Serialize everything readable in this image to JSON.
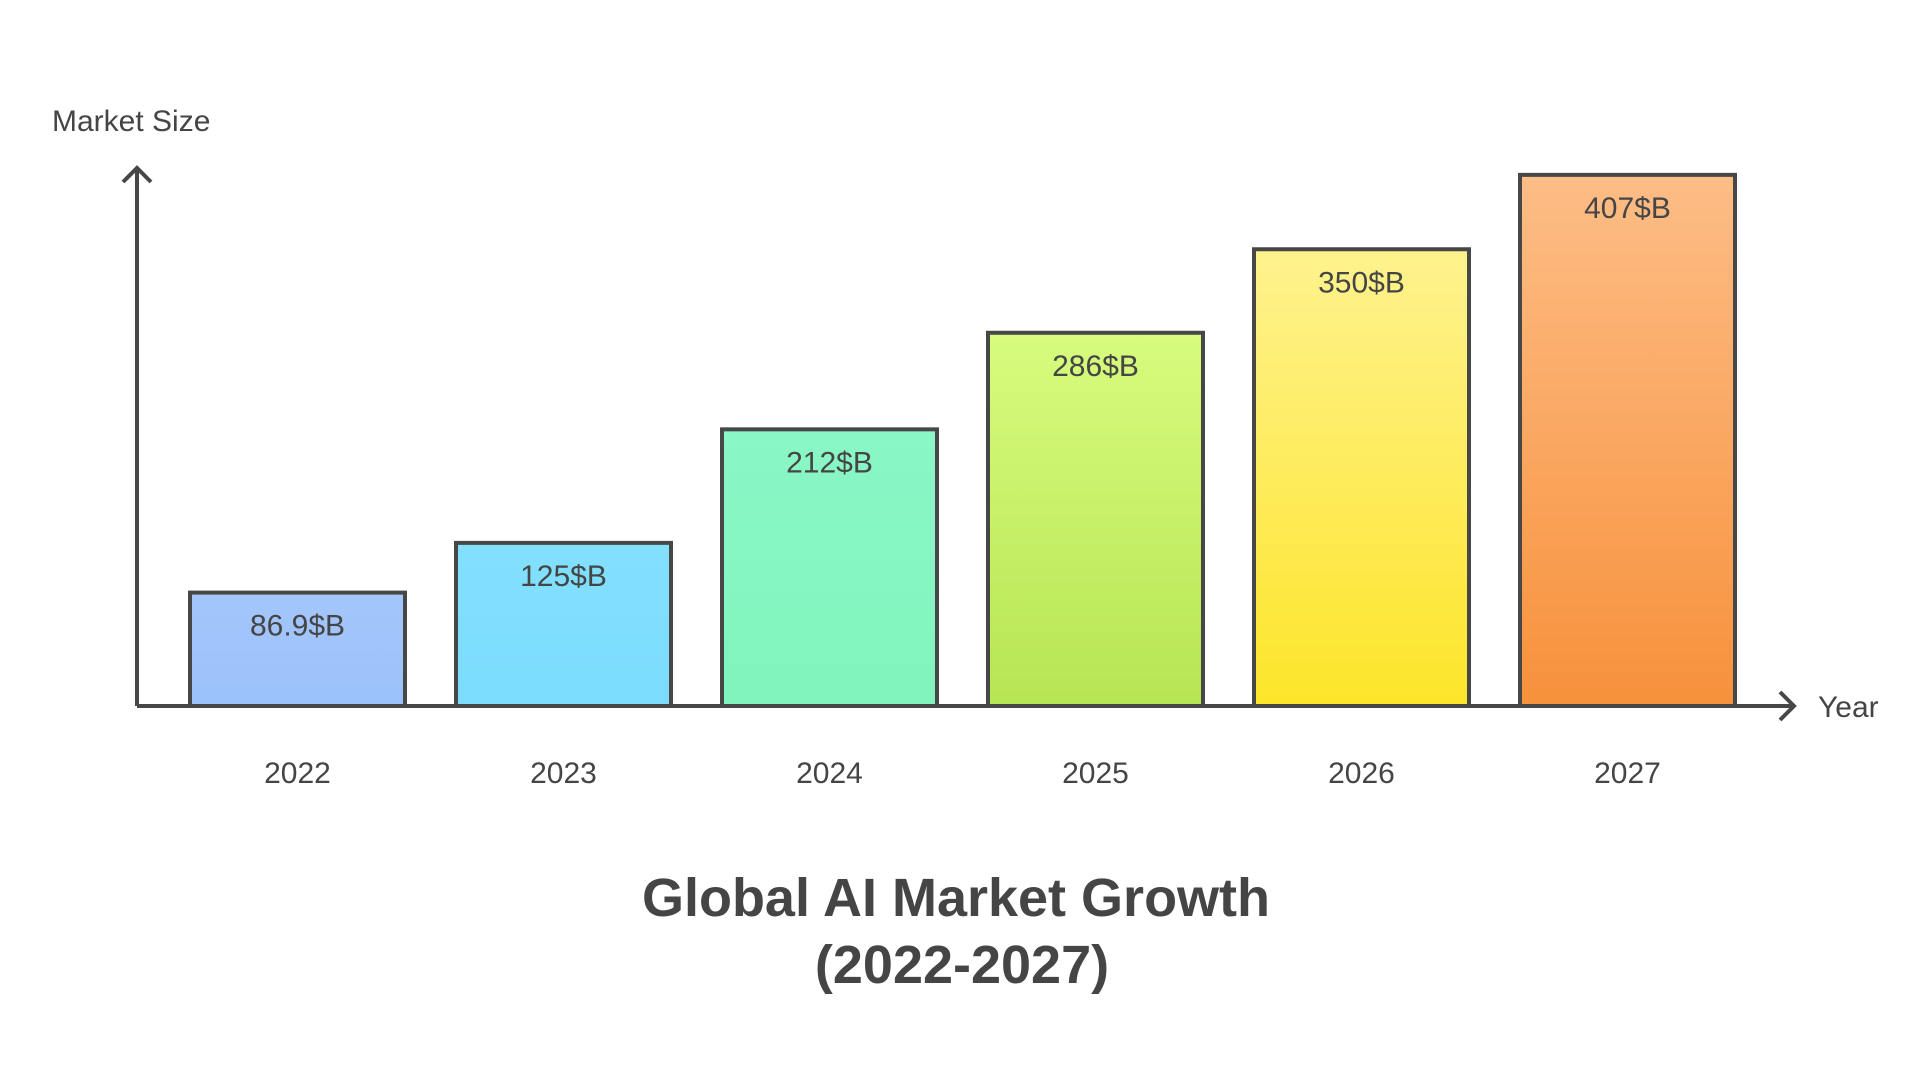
{
  "chart_data": {
    "type": "bar",
    "title": "Global AI Market Growth",
    "subtitle": "(2022-2027)",
    "xlabel": "Year",
    "ylabel": "Market Size",
    "categories": [
      "2022",
      "2023",
      "2024",
      "2025",
      "2026",
      "2027"
    ],
    "values": [
      86.9,
      125,
      212,
      286,
      350,
      407
    ],
    "value_labels": [
      "86.9$B",
      "125$B",
      "212$B",
      "286$B",
      "350$B",
      "407$B"
    ],
    "unit": "$B",
    "ylim": [
      0,
      430
    ],
    "grid": false,
    "colors": [
      [
        "#a3c6fb",
        "#9cc2fb"
      ],
      [
        "#82e0fe",
        "#7cdcfd"
      ],
      [
        "#8af7c6",
        "#80f4bc"
      ],
      [
        "#d8fb7d",
        "#b6e553"
      ],
      [
        "#fef28e",
        "#fde529"
      ],
      [
        "#fdbd86",
        "#f7913b"
      ]
    ]
  }
}
